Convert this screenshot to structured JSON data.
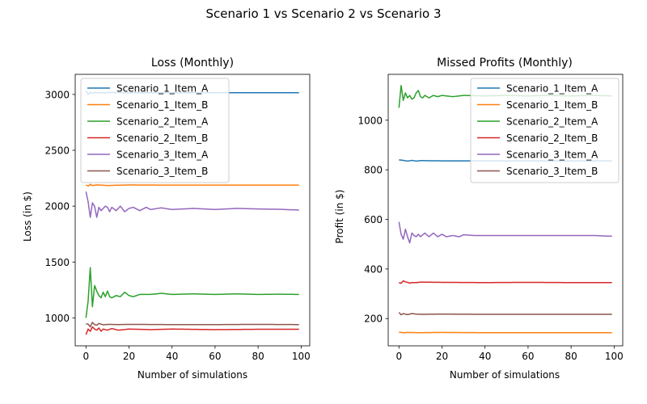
{
  "suptitle": "Scenario 1    vs    Scenario 2    vs    Scenario 3",
  "colors": {
    "Scenario_1_Item_A": "#1f77b4",
    "Scenario_1_Item_B": "#ff7f0e",
    "Scenario_2_Item_A": "#2ca02c",
    "Scenario_2_Item_B": "#d62728",
    "Scenario_3_Item_A": "#9467bd",
    "Scenario_3_Item_B": "#8c564b"
  },
  "chart_data": [
    {
      "type": "line",
      "title": "Loss (Monthly)",
      "xlabel": "Number of simulations",
      "ylabel": "Loss (in $)",
      "xlim": [
        -5,
        104
      ],
      "ylim": [
        750,
        3180
      ],
      "xticks": [
        0,
        20,
        40,
        60,
        80,
        100
      ],
      "yticks": [
        1000,
        1500,
        2000,
        2500,
        3000
      ],
      "grid": false,
      "legend": "upper-left",
      "series": [
        {
          "name": "Scenario_1_Item_A",
          "keys": [
            [
              0,
              3030
            ],
            [
              1,
              3000
            ],
            [
              2,
              3020
            ],
            [
              3,
              3010
            ],
            [
              4,
              3020
            ],
            [
              5,
              3015
            ],
            [
              8,
              3015
            ],
            [
              12,
              3018
            ],
            [
              20,
              3015
            ],
            [
              40,
              3015
            ],
            [
              60,
              3015
            ],
            [
              80,
              3015
            ],
            [
              99,
              3015
            ]
          ]
        },
        {
          "name": "Scenario_1_Item_B",
          "keys": [
            [
              0,
              2190
            ],
            [
              1,
              2180
            ],
            [
              2,
              2195
            ],
            [
              3,
              2185
            ],
            [
              5,
              2190
            ],
            [
              10,
              2185
            ],
            [
              20,
              2190
            ],
            [
              40,
              2188
            ],
            [
              60,
              2188
            ],
            [
              80,
              2188
            ],
            [
              99,
              2188
            ]
          ]
        },
        {
          "name": "Scenario_2_Item_A",
          "keys": [
            [
              0,
              1000
            ],
            [
              1,
              1150
            ],
            [
              2,
              1450
            ],
            [
              3,
              1100
            ],
            [
              4,
              1290
            ],
            [
              5,
              1240
            ],
            [
              6,
              1200
            ],
            [
              7,
              1180
            ],
            [
              8,
              1230
            ],
            [
              9,
              1190
            ],
            [
              10,
              1240
            ],
            [
              11,
              1190
            ],
            [
              12,
              1180
            ],
            [
              14,
              1200
            ],
            [
              16,
              1190
            ],
            [
              18,
              1230
            ],
            [
              20,
              1200
            ],
            [
              22,
              1190
            ],
            [
              25,
              1210
            ],
            [
              30,
              1210
            ],
            [
              35,
              1220
            ],
            [
              40,
              1210
            ],
            [
              50,
              1215
            ],
            [
              60,
              1210
            ],
            [
              70,
              1215
            ],
            [
              80,
              1210
            ],
            [
              90,
              1212
            ],
            [
              99,
              1210
            ]
          ]
        },
        {
          "name": "Scenario_2_Item_B",
          "keys": [
            [
              0,
              850
            ],
            [
              1,
              900
            ],
            [
              2,
              880
            ],
            [
              3,
              920
            ],
            [
              4,
              900
            ],
            [
              5,
              890
            ],
            [
              6,
              910
            ],
            [
              7,
              880
            ],
            [
              8,
              900
            ],
            [
              10,
              890
            ],
            [
              12,
              905
            ],
            [
              15,
              890
            ],
            [
              20,
              900
            ],
            [
              30,
              895
            ],
            [
              40,
              900
            ],
            [
              60,
              895
            ],
            [
              80,
              898
            ],
            [
              99,
              898
            ]
          ]
        },
        {
          "name": "Scenario_3_Item_A",
          "keys": [
            [
              0,
              2130
            ],
            [
              1,
              2040
            ],
            [
              2,
              1900
            ],
            [
              3,
              2030
            ],
            [
              4,
              2000
            ],
            [
              5,
              1900
            ],
            [
              6,
              1990
            ],
            [
              7,
              1960
            ],
            [
              8,
              1980
            ],
            [
              9,
              2000
            ],
            [
              10,
              1990
            ],
            [
              11,
              1950
            ],
            [
              12,
              1990
            ],
            [
              14,
              1960
            ],
            [
              16,
              2000
            ],
            [
              18,
              1950
            ],
            [
              20,
              1980
            ],
            [
              22,
              1990
            ],
            [
              25,
              1960
            ],
            [
              28,
              1990
            ],
            [
              30,
              1970
            ],
            [
              35,
              1985
            ],
            [
              40,
              1970
            ],
            [
              50,
              1980
            ],
            [
              60,
              1970
            ],
            [
              70,
              1980
            ],
            [
              80,
              1975
            ],
            [
              90,
              1972
            ],
            [
              99,
              1965
            ]
          ]
        },
        {
          "name": "Scenario_3_Item_B",
          "keys": [
            [
              0,
              945
            ],
            [
              1,
              945
            ],
            [
              2,
              920
            ],
            [
              3,
              960
            ],
            [
              4,
              940
            ],
            [
              5,
              935
            ],
            [
              6,
              950
            ],
            [
              8,
              938
            ],
            [
              10,
              942
            ],
            [
              15,
              940
            ],
            [
              20,
              942
            ],
            [
              40,
              940
            ],
            [
              60,
              940
            ],
            [
              80,
              942
            ],
            [
              99,
              940
            ]
          ]
        }
      ]
    },
    {
      "type": "line",
      "title": "Missed Profits (Monthly)",
      "xlabel": "Number of simulations",
      "ylabel": "Profit (in $)",
      "xlim": [
        -5,
        104
      ],
      "ylim": [
        90,
        1185
      ],
      "xticks": [
        0,
        20,
        40,
        60,
        80,
        100
      ],
      "yticks": [
        200,
        400,
        600,
        800,
        1000
      ],
      "grid": false,
      "legend": "upper-right",
      "series": [
        {
          "name": "Scenario_1_Item_A",
          "keys": [
            [
              0,
              840
            ],
            [
              2,
              838
            ],
            [
              4,
              835
            ],
            [
              6,
              838
            ],
            [
              8,
              835
            ],
            [
              10,
              837
            ],
            [
              20,
              836
            ],
            [
              40,
              836
            ],
            [
              60,
              836
            ],
            [
              80,
              836
            ],
            [
              99,
              836
            ]
          ]
        },
        {
          "name": "Scenario_1_Item_B",
          "keys": [
            [
              0,
              145
            ],
            [
              2,
              143
            ],
            [
              4,
              144
            ],
            [
              10,
              143
            ],
            [
              20,
              144
            ],
            [
              40,
              143
            ],
            [
              60,
              143
            ],
            [
              80,
              143
            ],
            [
              99,
              143
            ]
          ]
        },
        {
          "name": "Scenario_2_Item_A",
          "keys": [
            [
              0,
              1050
            ],
            [
              1,
              1140
            ],
            [
              2,
              1080
            ],
            [
              3,
              1110
            ],
            [
              4,
              1090
            ],
            [
              5,
              1100
            ],
            [
              6,
              1085
            ],
            [
              7,
              1090
            ],
            [
              8,
              1110
            ],
            [
              9,
              1120
            ],
            [
              10,
              1095
            ],
            [
              11,
              1090
            ],
            [
              12,
              1100
            ],
            [
              14,
              1090
            ],
            [
              16,
              1100
            ],
            [
              18,
              1095
            ],
            [
              20,
              1100
            ],
            [
              25,
              1095
            ],
            [
              30,
              1100
            ],
            [
              40,
              1098
            ],
            [
              50,
              1100
            ],
            [
              60,
              1098
            ],
            [
              70,
              1100
            ],
            [
              80,
              1098
            ],
            [
              90,
              1100
            ],
            [
              99,
              1098
            ]
          ]
        },
        {
          "name": "Scenario_2_Item_B",
          "keys": [
            [
              0,
              345
            ],
            [
              1,
              342
            ],
            [
              2,
              352
            ],
            [
              3,
              348
            ],
            [
              4,
              346
            ],
            [
              5,
              343
            ],
            [
              6,
              345
            ],
            [
              8,
              345
            ],
            [
              10,
              347
            ],
            [
              20,
              346
            ],
            [
              40,
              345
            ],
            [
              60,
              346
            ],
            [
              80,
              345
            ],
            [
              99,
              345
            ]
          ]
        },
        {
          "name": "Scenario_3_Item_A",
          "keys": [
            [
              0,
              590
            ],
            [
              1,
              540
            ],
            [
              2,
              520
            ],
            [
              3,
              560
            ],
            [
              4,
              530
            ],
            [
              5,
              505
            ],
            [
              6,
              545
            ],
            [
              7,
              535
            ],
            [
              8,
              530
            ],
            [
              9,
              540
            ],
            [
              10,
              530
            ],
            [
              12,
              545
            ],
            [
              14,
              530
            ],
            [
              16,
              545
            ],
            [
              18,
              530
            ],
            [
              20,
              540
            ],
            [
              22,
              530
            ],
            [
              25,
              535
            ],
            [
              28,
              530
            ],
            [
              30,
              538
            ],
            [
              35,
              535
            ],
            [
              40,
              535
            ],
            [
              50,
              535
            ],
            [
              60,
              535
            ],
            [
              70,
              535
            ],
            [
              80,
              535
            ],
            [
              90,
              535
            ],
            [
              99,
              532
            ]
          ]
        },
        {
          "name": "Scenario_3_Item_B",
          "keys": [
            [
              0,
              225
            ],
            [
              1,
              215
            ],
            [
              2,
              220
            ],
            [
              3,
              218
            ],
            [
              4,
              216
            ],
            [
              6,
              220
            ],
            [
              8,
              218
            ],
            [
              10,
              217
            ],
            [
              20,
              218
            ],
            [
              40,
              217
            ],
            [
              60,
              217
            ],
            [
              80,
              217
            ],
            [
              99,
              217
            ]
          ]
        }
      ]
    }
  ]
}
